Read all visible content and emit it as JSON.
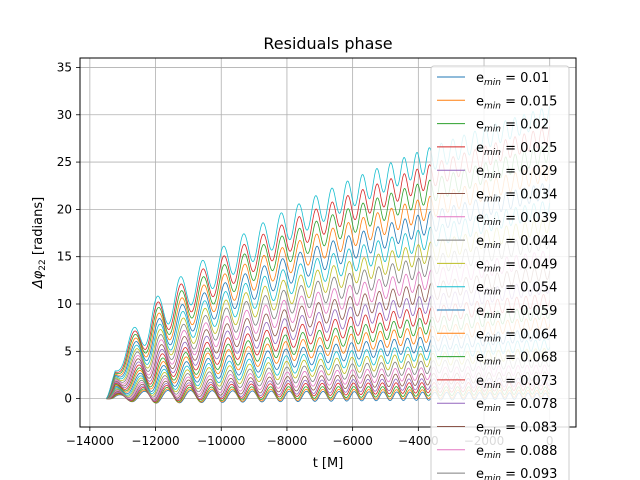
{
  "chart_data": {
    "type": "line",
    "title": "Residuals phase",
    "xlabel": "t [M]",
    "ylabel": "Δφ22 [radians]",
    "ylabel_main": "Δφ",
    "ylabel_sub": "22",
    "ylabel_rest": " [radians]",
    "xlim": [
      -14300,
      800
    ],
    "ylim": [
      -3,
      36
    ],
    "grid": true,
    "xticks": [
      -14000,
      -12000,
      -10000,
      -8000,
      -6000,
      -4000,
      -2000,
      0
    ],
    "xtick_labels": [
      "−14000",
      "−12000",
      "−10000",
      "−8000",
      "−6000",
      "−4000",
      "−2000",
      "0"
    ],
    "yticks": [
      0,
      5,
      10,
      15,
      20,
      25,
      30,
      35
    ],
    "ytick_labels": [
      "0",
      "5",
      "10",
      "15",
      "20",
      "25",
      "30",
      "35"
    ],
    "legend_placement": "right",
    "legend_prefix_main": "e",
    "legend_prefix_sub": "min",
    "legend_eq": " = ",
    "series": [
      {
        "name": "e_min = 0.01",
        "label_value": "0.01",
        "color": "#1f77b4",
        "final_value": 0.2
      },
      {
        "name": "e_min = 0.015",
        "label_value": "0.015",
        "color": "#ff7f0e",
        "final_value": 0.45
      },
      {
        "name": "e_min = 0.02",
        "label_value": "0.02",
        "color": "#2ca02c",
        "final_value": 0.8
      },
      {
        "name": "e_min = 0.025",
        "label_value": "0.025",
        "color": "#d62728",
        "final_value": 1.25
      },
      {
        "name": "e_min = 0.029",
        "label_value": "0.029",
        "color": "#9467bd",
        "final_value": 1.7
      },
      {
        "name": "e_min = 0.034",
        "label_value": "0.034",
        "color": "#8c564b",
        "final_value": 2.3
      },
      {
        "name": "e_min = 0.039",
        "label_value": "0.039",
        "color": "#e377c2",
        "final_value": 3.0
      },
      {
        "name": "e_min = 0.044",
        "label_value": "0.044",
        "color": "#7f7f7f",
        "final_value": 3.8
      },
      {
        "name": "e_min = 0.049",
        "label_value": "0.049",
        "color": "#bcbd22",
        "final_value": 4.7
      },
      {
        "name": "e_min = 0.054",
        "label_value": "0.054",
        "color": "#17becf",
        "final_value": 5.6
      },
      {
        "name": "e_min = 0.059",
        "label_value": "0.059",
        "color": "#1f77b4",
        "final_value": 6.7
      },
      {
        "name": "e_min = 0.064",
        "label_value": "0.064",
        "color": "#ff7f0e",
        "final_value": 7.9
      },
      {
        "name": "e_min = 0.068",
        "label_value": "0.068",
        "color": "#2ca02c",
        "final_value": 9.0
      },
      {
        "name": "e_min = 0.073",
        "label_value": "0.073",
        "color": "#d62728",
        "final_value": 10.3
      },
      {
        "name": "e_min = 0.078",
        "label_value": "0.078",
        "color": "#9467bd",
        "final_value": 11.7
      },
      {
        "name": "e_min = 0.083",
        "label_value": "0.083",
        "color": "#8c564b",
        "final_value": 13.2
      },
      {
        "name": "e_min = 0.088",
        "label_value": "0.088",
        "color": "#e377c2",
        "final_value": 14.8
      },
      {
        "name": "e_min = 0.093",
        "label_value": "0.093",
        "color": "#7f7f7f",
        "final_value": 16.5
      },
      {
        "name": "",
        "label_value": "",
        "color": "#bcbd22",
        "final_value": 18.2
      },
      {
        "name": "",
        "label_value": "",
        "color": "#17becf",
        "final_value": 20.0
      },
      {
        "name": "",
        "label_value": "",
        "color": "#1f77b4",
        "final_value": 21.9
      },
      {
        "name": "",
        "label_value": "",
        "color": "#ff7f0e",
        "final_value": 23.8
      },
      {
        "name": "",
        "label_value": "",
        "color": "#2ca02c",
        "final_value": 25.8
      },
      {
        "name": "",
        "label_value": "",
        "color": "#d62728",
        "final_value": 27.7
      },
      {
        "name": "",
        "label_value": "",
        "color": "#17becf",
        "final_value": 29.8
      }
    ],
    "t_start": -13500,
    "t_end": 0,
    "oscillation_period_early": 800,
    "oscillation_period_late": 450
  }
}
